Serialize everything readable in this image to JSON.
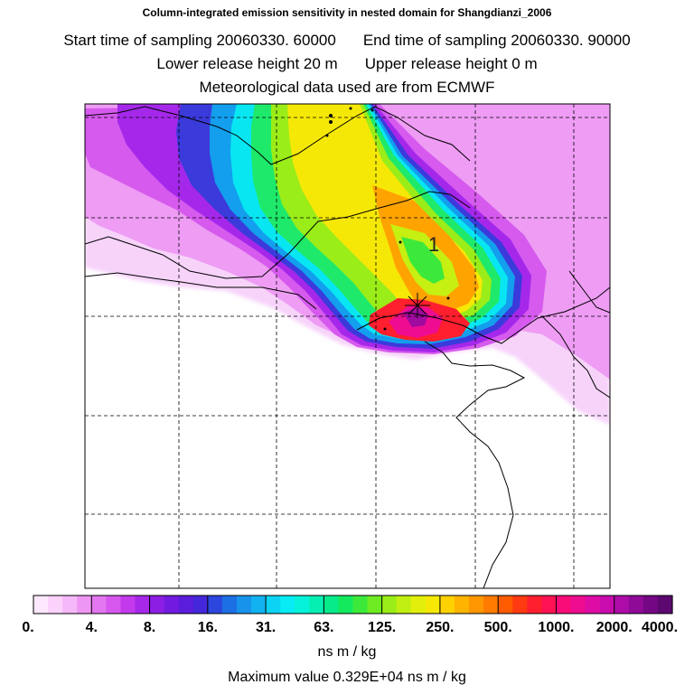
{
  "header": {
    "title": "Column-integrated emission sensitivity in nested domain for Shangdianzi_2006",
    "start_label": "Start time of sampling 20060330. 60000",
    "end_label": "End time of sampling 20060330. 90000",
    "lower_label": "Lower release height   20 m",
    "upper_label": "Upper release height    0 m",
    "met_label": "Meteorological data used are from ECMWF"
  },
  "map": {
    "release_marker_label": "1",
    "marker_icon": "star-cross-icon"
  },
  "colorbar": {
    "tick_labels": [
      "0.",
      "4.",
      "8.",
      "16.",
      "31.",
      "63.",
      "125.",
      "250.",
      "500.",
      "1000.",
      "2000.",
      "4000."
    ],
    "colors": [
      "#fde8fd",
      "#fad2fb",
      "#f5b8f8",
      "#ee96f4",
      "#e377f0",
      "#d657ee",
      "#c33aec",
      "#a629ea",
      "#8c1ee3",
      "#721ae0",
      "#5a1ddc",
      "#4527db",
      "#2b47de",
      "#1d6fe4",
      "#1793eb",
      "#12b2f0",
      "#0cd3f3",
      "#08ecf3",
      "#06f3d9",
      "#06efb3",
      "#07eb8a",
      "#14e95e",
      "#3ce93a",
      "#6eeb22",
      "#9aed18",
      "#c2ef12",
      "#e2ef0c",
      "#f6e806",
      "#ffd100",
      "#ffb400",
      "#ff9700",
      "#ff7b00",
      "#ff5c00",
      "#ff3a10",
      "#ff1f2e",
      "#ff1154",
      "#fa0c78",
      "#ee0c90",
      "#de0ca4",
      "#c80cae",
      "#ae0ca8",
      "#900a98",
      "#740884",
      "#5c0870"
    ],
    "units": "ns m / kg",
    "max_value": "Maximum value  0.329E+04 ns m / kg"
  }
}
